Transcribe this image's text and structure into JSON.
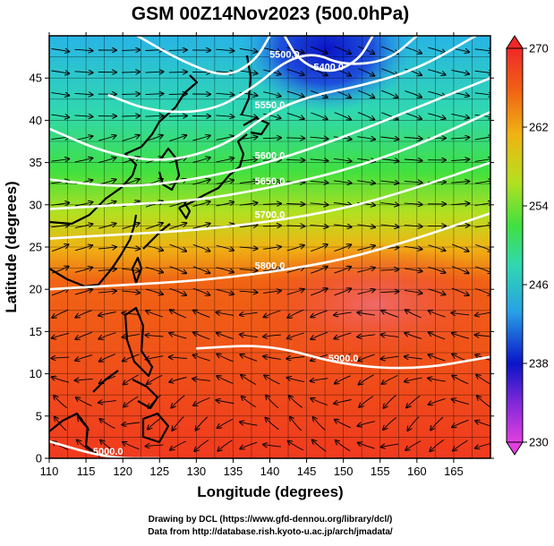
{
  "title": "GSM 00Z14Nov2023 (500.0hPa)",
  "xlabel": "Longitude (degrees)",
  "ylabel": "Latitude  (degrees)",
  "credits": [
    "Drawing by DCL (https://www.gfd-dennou.org/library/dcl/)",
    "Data from http://database.rish.kyoto-u.ac.jp/arch/jmadata/"
  ],
  "map_data": {
    "type": "map",
    "projection": "equirectangular",
    "field": "temperature",
    "contour_field": "geopotential height",
    "vectors": "streamlines",
    "xlim": [
      110,
      170
    ],
    "ylim": [
      0,
      50
    ],
    "xticks": [
      110,
      115,
      120,
      125,
      130,
      135,
      140,
      145,
      150,
      155,
      160,
      165
    ],
    "yticks": [
      0,
      5,
      10,
      15,
      20,
      25,
      30,
      35,
      40,
      45
    ],
    "colorbar": {
      "min": 230,
      "max": 270,
      "ticks": [
        230,
        238,
        246,
        254,
        262,
        270
      ],
      "stops": [
        "#e040e0",
        "#0a14c8",
        "#28a0e6",
        "#30d8b0",
        "#40e040",
        "#b4e020",
        "#f0b414",
        "#f06414",
        "#f02828"
      ]
    },
    "contours": [
      {
        "label": "5000.0",
        "lat_at": [
          [
            110,
            2
          ],
          [
            118,
            0
          ],
          [
            125,
            0
          ]
        ]
      },
      {
        "label": "5900.0",
        "lat_at": [
          [
            130,
            13
          ],
          [
            140,
            13.5
          ],
          [
            150,
            11
          ],
          [
            160,
            10.5
          ],
          [
            170,
            12
          ]
        ]
      },
      {
        "label": "5800.0",
        "lat_at": [
          [
            110,
            20
          ],
          [
            120,
            20.5
          ],
          [
            130,
            21
          ],
          [
            140,
            22
          ],
          [
            150,
            23.5
          ],
          [
            160,
            26
          ],
          [
            170,
            29
          ]
        ]
      },
      {
        "label": "5700.0",
        "lat_at": [
          [
            110,
            26
          ],
          [
            120,
            26.5
          ],
          [
            130,
            27
          ],
          [
            140,
            28
          ],
          [
            150,
            29.5
          ],
          [
            160,
            32
          ],
          [
            170,
            35
          ]
        ]
      },
      {
        "label": "5650.0",
        "lat_at": [
          [
            110,
            29.5
          ],
          [
            120,
            30
          ],
          [
            130,
            30.5
          ],
          [
            140,
            32
          ],
          [
            150,
            34
          ],
          [
            160,
            37
          ],
          [
            170,
            41
          ]
        ]
      },
      {
        "label": "5600.0",
        "lat_at": [
          [
            110,
            33
          ],
          [
            120,
            32
          ],
          [
            130,
            33
          ],
          [
            140,
            35
          ],
          [
            150,
            38
          ],
          [
            160,
            41.5
          ],
          [
            170,
            45
          ]
        ]
      },
      {
        "label": "5550.0",
        "lat_at": [
          [
            110,
            39
          ],
          [
            118,
            36
          ],
          [
            126,
            35
          ],
          [
            134,
            37
          ],
          [
            140,
            41
          ],
          [
            146,
            43
          ],
          [
            152,
            44
          ],
          [
            160,
            46
          ],
          [
            168,
            50
          ]
        ]
      },
      {
        "label": "5500.0",
        "lat_at": [
          [
            118,
            43
          ],
          [
            124,
            41
          ],
          [
            132,
            41
          ],
          [
            138,
            44
          ],
          [
            142,
            47
          ],
          [
            146,
            48
          ],
          [
            150,
            46.5
          ],
          [
            156,
            47
          ],
          [
            160,
            50
          ]
        ]
      },
      {
        "label": "",
        "lat_at": [
          [
            122,
            50
          ],
          [
            128,
            47
          ],
          [
            134,
            45
          ],
          [
            138,
            47
          ],
          [
            140,
            50
          ]
        ]
      },
      {
        "label": "5400.0",
        "lat_at": [
          [
            142,
            50
          ],
          [
            144,
            47
          ],
          [
            148,
            45.5
          ],
          [
            152,
            47
          ],
          [
            154,
            50
          ]
        ]
      }
    ]
  }
}
